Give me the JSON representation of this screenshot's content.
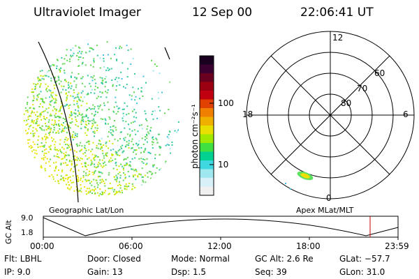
{
  "header": {
    "title": "Ultraviolet Imager",
    "date": "12 Sep 00",
    "time": "22:06:41 UT"
  },
  "colorbar": {
    "unit_label": "photon cm⁻²s⁻¹",
    "tick_100": "100",
    "tick_10": "10",
    "colors": [
      "#1a0020",
      "#3a0030",
      "#6a0020",
      "#9a0010",
      "#c00010",
      "#e04000",
      "#f08000",
      "#f0b000",
      "#e8e000",
      "#a0e800",
      "#40e040",
      "#00d090",
      "#40d8e0",
      "#a0e8f0",
      "#d8f0f8",
      "#f0f0f0"
    ]
  },
  "polar": {
    "labels": {
      "top": "12",
      "left": "18",
      "right": "6",
      "bottom": "0"
    },
    "rings": [
      "60",
      "70",
      "80"
    ]
  },
  "timeline": {
    "left_title": "Geographic Lat/Lon",
    "right_title": "Apex MLat/MLT",
    "yaxis_label": "GC Alt",
    "ytick_top": "9.0",
    "ytick_bottom": "1.8",
    "xticks": [
      "00:00",
      "06:00",
      "12:00",
      "18:00",
      "23:59"
    ],
    "marker_color": "#c00000"
  },
  "info": {
    "flt": "Flt: LBHL",
    "ip": "IP:  9.0",
    "door": "Door: Closed",
    "gain": "Gain: 13",
    "mode": "Mode: Normal",
    "dsp": "Dsp:    1.5",
    "gcalt": "GC Alt: 2.6 Re",
    "seq": "Seq: 39",
    "glat": "GLat: −57.7",
    "glon": "GLon:  31.0"
  }
}
